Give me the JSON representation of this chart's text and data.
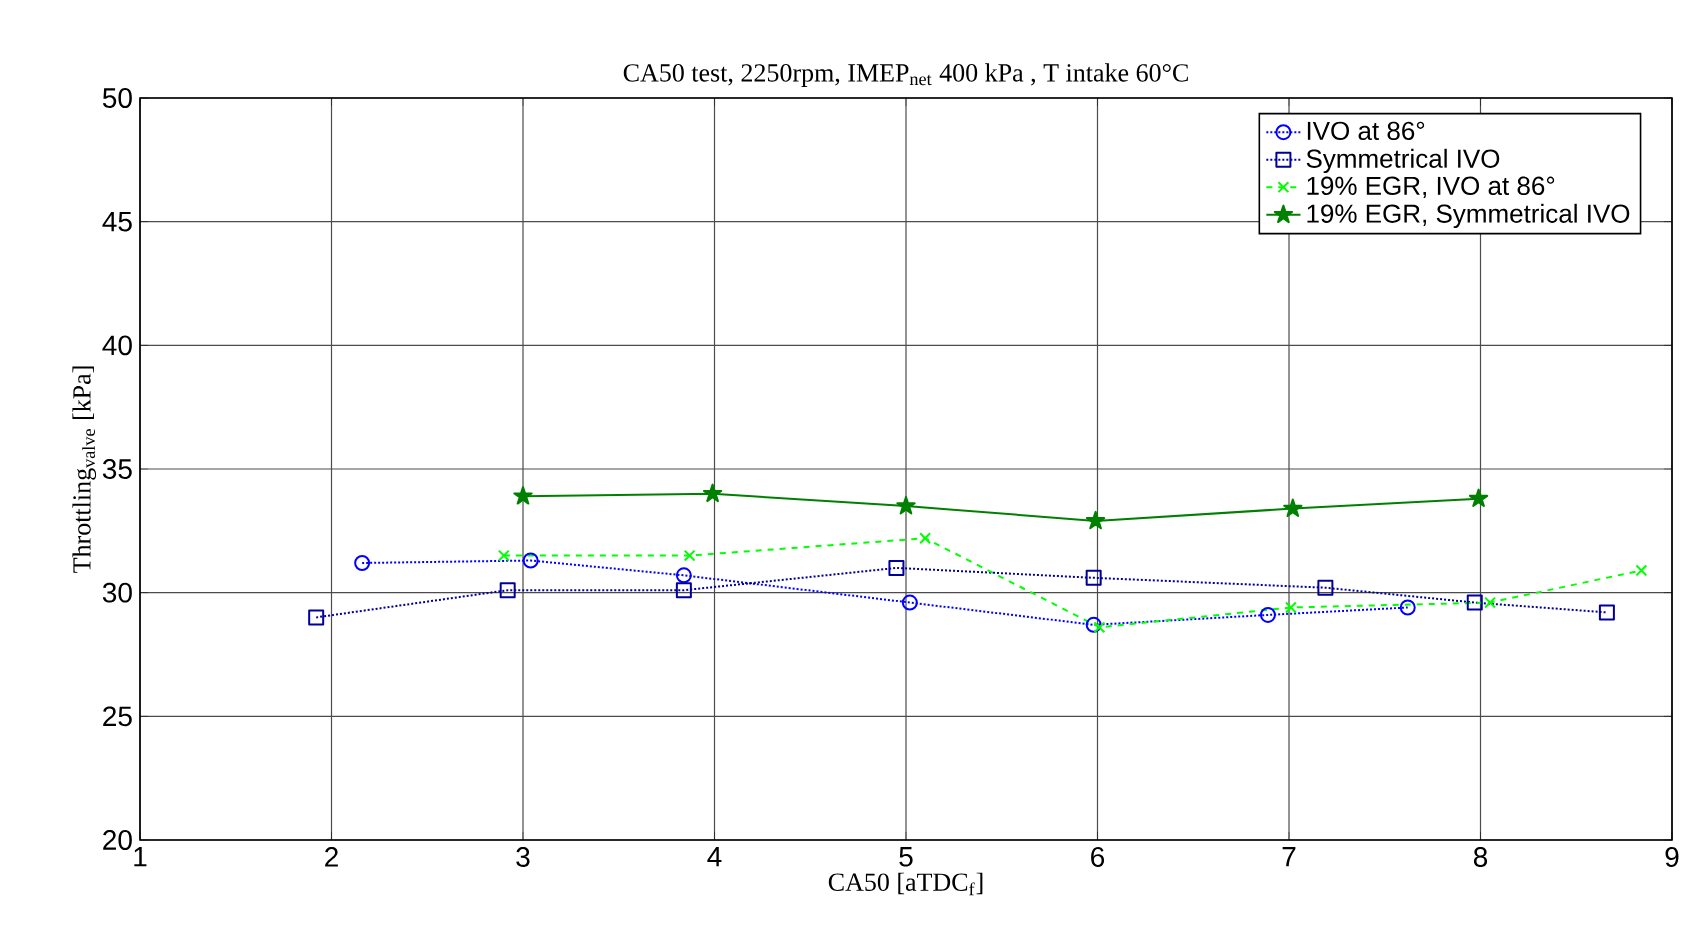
{
  "chart_data": {
    "type": "line",
    "title": "CA50 test, 2250rpm, IMEP$_{net}$ 400 kPa , T intake 60°C",
    "xlabel": "CA50   [aTDC$_{f}$]",
    "ylabel": "Throttling$_{valve}$   [kPa]",
    "xlim": [
      1,
      9
    ],
    "xticks": [
      1,
      2,
      3,
      4,
      5,
      6,
      7,
      8,
      9
    ],
    "ylim": [
      20,
      50
    ],
    "yticks": [
      20,
      25,
      30,
      35,
      40,
      45,
      50
    ],
    "grid": true,
    "legend": "top right",
    "series": [
      {
        "name": "IVO at 86°",
        "color": "#0000ff",
        "marker": "circle",
        "line_style": "dotted",
        "x": [
          2.16,
          3.04,
          3.84,
          5.02,
          5.98,
          6.89,
          7.62
        ],
        "values": [
          31.2,
          31.3,
          30.7,
          29.6,
          28.7,
          29.1,
          29.4
        ]
      },
      {
        "name": "Symmetrical IVO",
        "color": "#000099",
        "marker": "square",
        "line_style": "dotted",
        "x": [
          1.92,
          2.92,
          3.84,
          4.95,
          5.98,
          7.19,
          7.97,
          8.66
        ],
        "values": [
          29.0,
          30.1,
          30.1,
          31.0,
          30.6,
          30.2,
          29.6,
          29.2
        ]
      },
      {
        "name": "19% EGR, IVO at 86°",
        "color": "#00ff00",
        "marker": "cross",
        "line_style": "dashed",
        "x": [
          2.9,
          3.87,
          5.1,
          6.01,
          7.01,
          8.05,
          8.84
        ],
        "values": [
          31.5,
          31.5,
          32.2,
          28.6,
          29.4,
          29.6,
          30.9
        ]
      },
      {
        "name": "19% EGR, Symmetrical IVO",
        "color": "#008000",
        "marker": "star",
        "line_style": "solid",
        "x": [
          3.0,
          3.99,
          5.0,
          5.99,
          7.02,
          7.99
        ],
        "values": [
          33.9,
          34.0,
          33.5,
          32.9,
          33.4,
          33.8
        ]
      }
    ]
  }
}
